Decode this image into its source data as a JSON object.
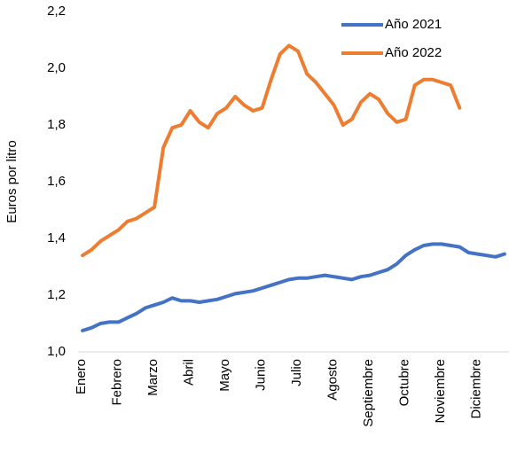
{
  "chart_data": {
    "type": "line",
    "y_label": "Euros por litro",
    "categories": [
      "Enero",
      null,
      null,
      null,
      "Febrero",
      null,
      null,
      null,
      "Marzo",
      null,
      null,
      null,
      "Abril",
      null,
      null,
      null,
      "Mayo",
      null,
      null,
      null,
      "Junio",
      null,
      null,
      null,
      "Julio",
      null,
      null,
      null,
      "Agosto",
      null,
      null,
      null,
      "Septiembre",
      null,
      null,
      null,
      "Octubre",
      null,
      null,
      null,
      "Noviembre",
      null,
      null,
      null,
      "Diciembre",
      null,
      null,
      null
    ],
    "series": [
      {
        "name": "Año 2021",
        "color": "#4472c4",
        "values": [
          1.075,
          1.085,
          1.1,
          1.105,
          1.105,
          1.12,
          1.135,
          1.155,
          1.165,
          1.175,
          1.19,
          1.18,
          1.18,
          1.175,
          1.18,
          1.185,
          1.195,
          1.205,
          1.21,
          1.215,
          1.225,
          1.235,
          1.245,
          1.255,
          1.26,
          1.26,
          1.265,
          1.27,
          1.265,
          1.26,
          1.255,
          1.265,
          1.27,
          1.28,
          1.29,
          1.31,
          1.34,
          1.36,
          1.375,
          1.38,
          1.38,
          1.375,
          1.37,
          1.35,
          1.345,
          1.34,
          1.335,
          1.345
        ]
      },
      {
        "name": "Año 2022",
        "color": "#ed7d31",
        "values": [
          1.34,
          1.36,
          1.39,
          1.41,
          1.43,
          1.46,
          1.47,
          1.49,
          1.51,
          1.72,
          1.79,
          1.8,
          1.85,
          1.81,
          1.79,
          1.84,
          1.86,
          1.9,
          1.87,
          1.85,
          1.86,
          1.96,
          2.05,
          2.08,
          2.06,
          1.98,
          1.95,
          1.91,
          1.87,
          1.8,
          1.82,
          1.88,
          1.91,
          1.89,
          1.84,
          1.81,
          1.82,
          1.94,
          1.96,
          1.96,
          1.95,
          1.94,
          1.86,
          null,
          null,
          null,
          null,
          null
        ]
      }
    ],
    "ylim": [
      1.0,
      2.2
    ],
    "yticks": [
      {
        "value": 1.0,
        "label": "1,0"
      },
      {
        "value": 1.2,
        "label": "1,2"
      },
      {
        "value": 1.4,
        "label": "1,4"
      },
      {
        "value": 1.6,
        "label": "1,6"
      },
      {
        "value": 1.8,
        "label": "1,8"
      },
      {
        "value": 2.0,
        "label": "2,0"
      },
      {
        "value": 2.2,
        "label": "2,2"
      }
    ],
    "legend": "top-right"
  }
}
